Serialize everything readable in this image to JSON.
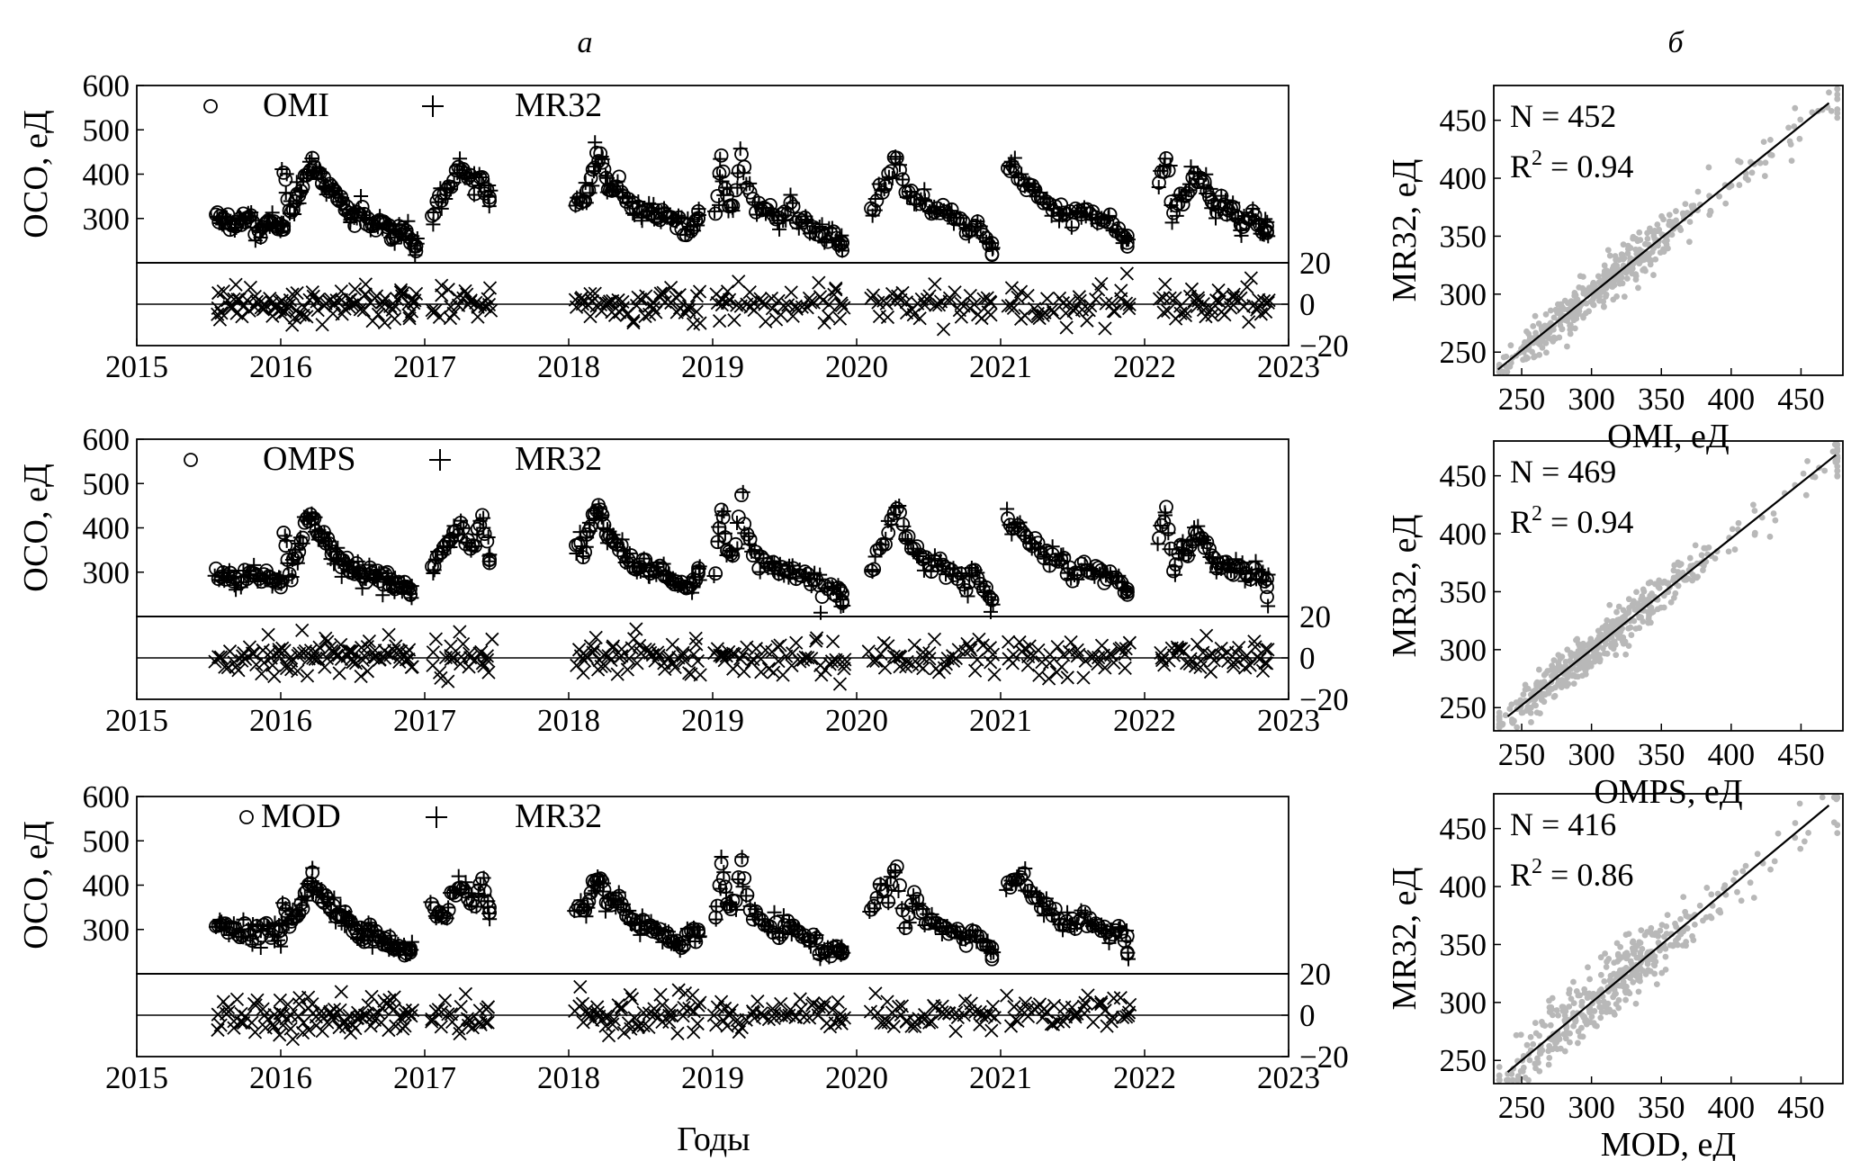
{
  "figure": {
    "label_a": "а",
    "label_b": "б",
    "x_axis_label": "Годы"
  },
  "chart_data": [
    {
      "type": "scatter",
      "panel": "a-1",
      "ylabel": "ОСО, еД",
      "xlim": [
        2015,
        2023
      ],
      "ylim": [
        200,
        600
      ],
      "x_ticks": [
        "2015",
        "2016",
        "2017",
        "2018",
        "2019",
        "2020",
        "2021",
        "2022",
        "2023"
      ],
      "y_ticks": [
        "300",
        "400",
        "500",
        "600"
      ],
      "diff_ylim": [
        -20,
        20
      ],
      "diff_ticks": [
        "20",
        "0",
        "−20"
      ],
      "series": [
        {
          "name": "OMI",
          "marker": "circle"
        },
        {
          "name": "MR32",
          "marker": "plus"
        }
      ],
      "seasons": [
        {
          "x": [
            2015.55,
            2015.58,
            2015.62,
            2015.66,
            2015.7,
            2015.74,
            2015.78,
            2015.82,
            2015.86,
            2015.9,
            2015.94,
            2015.98,
            2016.02
          ],
          "y": [
            300,
            295,
            305,
            290,
            285,
            300,
            295,
            280,
            275,
            290,
            285,
            280,
            275
          ]
        },
        {
          "x": [
            2016.02,
            2016.06,
            2016.1,
            2016.14,
            2016.18,
            2016.22,
            2016.26,
            2016.3,
            2016.34,
            2016.38,
            2016.42,
            2016.46,
            2016.5,
            2016.54,
            2016.58,
            2016.62,
            2016.66,
            2016.7,
            2016.74,
            2016.78,
            2016.82,
            2016.86,
            2016.9,
            2016.94
          ],
          "y": [
            395,
            310,
            330,
            360,
            400,
            430,
            390,
            380,
            370,
            350,
            340,
            320,
            300,
            295,
            305,
            290,
            285,
            300,
            280,
            260,
            280,
            270,
            250,
            240
          ]
        },
        {
          "x": [
            2017.05,
            2017.1,
            2017.15,
            2017.2,
            2017.25,
            2017.3,
            2017.35,
            2017.4,
            2017.45
          ],
          "y": [
            310,
            345,
            360,
            380,
            410,
            390,
            370,
            400,
            340
          ]
        },
        {
          "x": [
            2018.05,
            2018.1,
            2018.14,
            2018.18,
            2018.22,
            2018.26,
            2018.3,
            2018.35,
            2018.4,
            2018.45,
            2018.5,
            2018.55,
            2018.6,
            2018.65,
            2018.7,
            2018.75,
            2018.8,
            2018.85,
            2018.9
          ],
          "y": [
            340,
            335,
            370,
            420,
            450,
            400,
            360,
            380,
            340,
            330,
            320,
            325,
            310,
            305,
            300,
            285,
            270,
            260,
            300
          ]
        },
        {
          "x": [
            2019.02,
            2019.06,
            2019.1,
            2019.14,
            2019.2,
            2019.26,
            2019.32,
            2019.38,
            2019.44,
            2019.5,
            2019.56,
            2019.62,
            2019.68,
            2019.74,
            2019.8,
            2019.86,
            2019.9
          ],
          "y": [
            305,
            440,
            340,
            330,
            450,
            350,
            320,
            330,
            300,
            310,
            320,
            290,
            280,
            270,
            250,
            255,
            240
          ]
        },
        {
          "x": [
            2020.1,
            2020.16,
            2020.22,
            2020.28,
            2020.34,
            2020.4,
            2020.46,
            2020.52,
            2020.58,
            2020.64,
            2020.7,
            2020.76,
            2020.82,
            2020.88,
            2020.94
          ],
          "y": [
            300,
            360,
            390,
            440,
            370,
            350,
            330,
            320,
            315,
            310,
            300,
            270,
            290,
            270,
            230
          ]
        },
        {
          "x": [
            2021.05,
            2021.1,
            2021.16,
            2021.22,
            2021.28,
            2021.34,
            2021.4,
            2021.46,
            2021.52,
            2021.58,
            2021.64,
            2021.7,
            2021.76,
            2021.82,
            2021.88
          ],
          "y": [
            410,
            405,
            380,
            360,
            340,
            330,
            320,
            310,
            300,
            320,
            310,
            290,
            300,
            270,
            250
          ]
        },
        {
          "x": [
            2022.1,
            2022.15,
            2022.2,
            2022.25,
            2022.3,
            2022.35,
            2022.4,
            2022.45,
            2022.5,
            2022.55,
            2022.6,
            2022.65,
            2022.7,
            2022.75,
            2022.8,
            2022.85
          ],
          "y": [
            380,
            440,
            300,
            360,
            350,
            400,
            380,
            350,
            320,
            330,
            310,
            300,
            290,
            310,
            280,
            270
          ]
        }
      ]
    },
    {
      "type": "scatter",
      "panel": "a-2",
      "ylabel": "ОСО, еД",
      "xlim": [
        2015,
        2023
      ],
      "ylim": [
        200,
        600
      ],
      "x_ticks": [
        "2015",
        "2016",
        "2017",
        "2018",
        "2019",
        "2020",
        "2021",
        "2022",
        "2023"
      ],
      "y_ticks": [
        "300",
        "400",
        "500",
        "600"
      ],
      "diff_ylim": [
        -20,
        20
      ],
      "diff_ticks": [
        "20",
        "0",
        "−20"
      ],
      "series": [
        {
          "name": "OMPS",
          "marker": "circle"
        },
        {
          "name": "MR32",
          "marker": "plus"
        }
      ],
      "seasons": [
        {
          "x": [
            2015.55,
            2015.6,
            2015.65,
            2015.7,
            2015.75,
            2015.8,
            2015.85,
            2015.9,
            2015.95,
            2016.0
          ],
          "y": [
            300,
            290,
            285,
            280,
            290,
            300,
            285,
            295,
            280,
            275
          ]
        },
        {
          "x": [
            2016.02,
            2016.06,
            2016.1,
            2016.14,
            2016.18,
            2016.22,
            2016.26,
            2016.3,
            2016.34,
            2016.38,
            2016.42,
            2016.46,
            2016.5,
            2016.54,
            2016.58,
            2016.62,
            2016.66,
            2016.7,
            2016.74,
            2016.78,
            2016.82,
            2016.86,
            2016.9
          ],
          "y": [
            390,
            300,
            320,
            360,
            410,
            440,
            390,
            380,
            360,
            340,
            330,
            320,
            310,
            300,
            290,
            300,
            285,
            290,
            280,
            270,
            260,
            280,
            250
          ]
        },
        {
          "x": [
            2017.05,
            2017.1,
            2017.15,
            2017.2,
            2017.25,
            2017.3,
            2017.35,
            2017.4,
            2017.45
          ],
          "y": [
            320,
            340,
            360,
            380,
            400,
            370,
            360,
            430,
            330
          ]
        },
        {
          "x": [
            2018.05,
            2018.1,
            2018.14,
            2018.18,
            2018.22,
            2018.26,
            2018.3,
            2018.35,
            2018.4,
            2018.45,
            2018.5,
            2018.55,
            2018.6,
            2018.65,
            2018.7,
            2018.75,
            2018.8,
            2018.85,
            2018.9
          ],
          "y": [
            370,
            340,
            400,
            430,
            460,
            390,
            370,
            360,
            330,
            320,
            315,
            310,
            300,
            305,
            290,
            280,
            270,
            265,
            300
          ]
        },
        {
          "x": [
            2019.02,
            2019.06,
            2019.1,
            2019.14,
            2019.2,
            2019.26,
            2019.32,
            2019.38,
            2019.44,
            2019.5,
            2019.56,
            2019.62,
            2019.68,
            2019.74,
            2019.8,
            2019.86,
            2019.9
          ],
          "y": [
            310,
            440,
            350,
            330,
            455,
            360,
            330,
            320,
            310,
            300,
            290,
            300,
            280,
            270,
            260,
            250,
            245
          ]
        },
        {
          "x": [
            2020.1,
            2020.16,
            2020.22,
            2020.28,
            2020.34,
            2020.4,
            2020.46,
            2020.52,
            2020.58,
            2020.64,
            2020.7,
            2020.76,
            2020.82,
            2020.88,
            2020.94
          ],
          "y": [
            300,
            360,
            400,
            440,
            380,
            360,
            340,
            310,
            320,
            305,
            300,
            270,
            295,
            270,
            240
          ]
        },
        {
          "x": [
            2021.05,
            2021.1,
            2021.16,
            2021.22,
            2021.28,
            2021.34,
            2021.4,
            2021.46,
            2021.52,
            2021.58,
            2021.64,
            2021.7,
            2021.76,
            2021.82,
            2021.88
          ],
          "y": [
            415,
            400,
            390,
            370,
            350,
            330,
            325,
            310,
            300,
            320,
            305,
            300,
            290,
            280,
            250
          ]
        },
        {
          "x": [
            2022.1,
            2022.15,
            2022.2,
            2022.25,
            2022.3,
            2022.35,
            2022.4,
            2022.45,
            2022.5,
            2022.55,
            2022.6,
            2022.65,
            2022.7,
            2022.75,
            2022.8,
            2022.85
          ],
          "y": [
            370,
            450,
            300,
            360,
            350,
            390,
            370,
            350,
            320,
            330,
            300,
            310,
            290,
            300,
            280,
            270
          ]
        }
      ]
    },
    {
      "type": "scatter",
      "panel": "a-3",
      "ylabel": "ОСО, еД",
      "xlim": [
        2015,
        2023
      ],
      "ylim": [
        200,
        600
      ],
      "x_ticks": [
        "2015",
        "2016",
        "2017",
        "2018",
        "2019",
        "2020",
        "2021",
        "2022",
        "2023"
      ],
      "y_ticks": [
        "300",
        "400",
        "500",
        "600"
      ],
      "diff_ylim": [
        -20,
        20
      ],
      "diff_ticks": [
        "20",
        "0",
        "−20"
      ],
      "series": [
        {
          "name": "MOD",
          "marker": "circle"
        },
        {
          "name": "MR32",
          "marker": "plus"
        }
      ],
      "seasons": [
        {
          "x": [
            2015.55,
            2015.6,
            2015.65,
            2015.7,
            2015.75,
            2015.8,
            2015.85,
            2015.9,
            2015.95,
            2016.0
          ],
          "y": [
            300,
            305,
            290,
            285,
            300,
            290,
            285,
            300,
            295,
            290
          ]
        },
        {
          "x": [
            2016.02,
            2016.06,
            2016.1,
            2016.14,
            2016.18,
            2016.22,
            2016.26,
            2016.3,
            2016.34,
            2016.38,
            2016.42,
            2016.46,
            2016.5,
            2016.54,
            2016.58,
            2016.62,
            2016.66,
            2016.7,
            2016.74,
            2016.78,
            2016.82,
            2016.86,
            2016.9
          ],
          "y": [
            370,
            310,
            330,
            350,
            390,
            420,
            380,
            375,
            360,
            340,
            330,
            320,
            300,
            295,
            290,
            300,
            280,
            285,
            270,
            260,
            270,
            250,
            245
          ]
        },
        {
          "x": [
            2017.05,
            2017.1,
            2017.15,
            2017.2,
            2017.25,
            2017.3,
            2017.35,
            2017.4,
            2017.45
          ],
          "y": [
            360,
            330,
            340,
            380,
            400,
            370,
            360,
            420,
            340
          ]
        },
        {
          "x": [
            2018.05,
            2018.1,
            2018.14,
            2018.18,
            2018.22,
            2018.26,
            2018.3,
            2018.35,
            2018.4,
            2018.45,
            2018.5,
            2018.55,
            2018.6,
            2018.65,
            2018.7,
            2018.75,
            2018.8,
            2018.85,
            2018.9
          ],
          "y": [
            350,
            340,
            370,
            410,
            420,
            380,
            360,
            380,
            340,
            320,
            310,
            320,
            300,
            290,
            280,
            270,
            260,
            300,
            295
          ]
        },
        {
          "x": [
            2019.02,
            2019.06,
            2019.1,
            2019.14,
            2019.2,
            2019.26,
            2019.32,
            2019.38,
            2019.44,
            2019.5,
            2019.56,
            2019.62,
            2019.68,
            2019.74,
            2019.8,
            2019.86,
            2019.9
          ],
          "y": [
            320,
            440,
            370,
            350,
            445,
            340,
            320,
            310,
            300,
            320,
            310,
            280,
            290,
            270,
            255,
            250,
            250
          ]
        },
        {
          "x": [
            2020.1,
            2020.16,
            2020.22,
            2020.28,
            2020.34,
            2020.4,
            2020.46,
            2020.52,
            2020.58,
            2020.64,
            2020.7,
            2020.76,
            2020.82,
            2020.88,
            2020.94
          ],
          "y": [
            340,
            390,
            370,
            450,
            300,
            370,
            330,
            320,
            310,
            300,
            290,
            275,
            300,
            270,
            250
          ]
        },
        {
          "x": [
            2021.05,
            2021.1,
            2021.16,
            2021.22,
            2021.28,
            2021.34,
            2021.4,
            2021.46,
            2021.52,
            2021.58,
            2021.64,
            2021.7,
            2021.76,
            2021.82,
            2021.88
          ],
          "y": [
            410,
            400,
            420,
            380,
            360,
            340,
            320,
            310,
            300,
            330,
            310,
            300,
            290,
            310,
            260
          ]
        }
      ]
    },
    {
      "type": "scatter",
      "panel": "b-1",
      "xlabel": "OMI, еД",
      "ylabel": "MR32, еД",
      "xlim": [
        230,
        480
      ],
      "ylim": [
        230,
        480
      ],
      "x_ticks": [
        "250",
        "300",
        "350",
        "400",
        "450"
      ],
      "y_ticks": [
        "250",
        "300",
        "350",
        "400",
        "450"
      ],
      "stat_n": "N = 452",
      "stat_r2_prefix": "R",
      "stat_r2_sup": "2",
      "stat_r2_value": " = 0.94",
      "point_color": "#b8b8b8",
      "n": 452,
      "slope": 0.97,
      "intercept": 9,
      "scatter_sd": 9,
      "fit_x": [
        233,
        470
      ]
    },
    {
      "type": "scatter",
      "panel": "b-2",
      "xlabel": "OMPS, еД",
      "ylabel": "MR32, еД",
      "xlim": [
        230,
        480
      ],
      "ylim": [
        230,
        480
      ],
      "x_ticks": [
        "250",
        "300",
        "350",
        "400",
        "450"
      ],
      "y_ticks": [
        "250",
        "300",
        "350",
        "400",
        "450"
      ],
      "stat_n": "N = 469",
      "stat_r2_prefix": "R",
      "stat_r2_sup": "2",
      "stat_r2_value": " = 0.94",
      "point_color": "#b8b8b8",
      "n": 469,
      "slope": 0.96,
      "intercept": 12,
      "scatter_sd": 9,
      "fit_x": [
        240,
        475
      ]
    },
    {
      "type": "scatter",
      "panel": "b-3",
      "xlabel": "MOD, еД",
      "ylabel": "MR32, еД",
      "xlim": [
        230,
        480
      ],
      "ylim": [
        230,
        480
      ],
      "x_ticks": [
        "250",
        "300",
        "350",
        "400",
        "450"
      ],
      "y_ticks": [
        "250",
        "300",
        "350",
        "400",
        "450"
      ],
      "stat_n": "N = 416",
      "stat_r2_prefix": "R",
      "stat_r2_sup": "2",
      "stat_r2_value": " = 0.86",
      "point_color": "#b8b8b8",
      "n": 416,
      "slope": 1.0,
      "intercept": 0,
      "scatter_sd": 14,
      "fit_x": [
        240,
        470
      ]
    }
  ]
}
